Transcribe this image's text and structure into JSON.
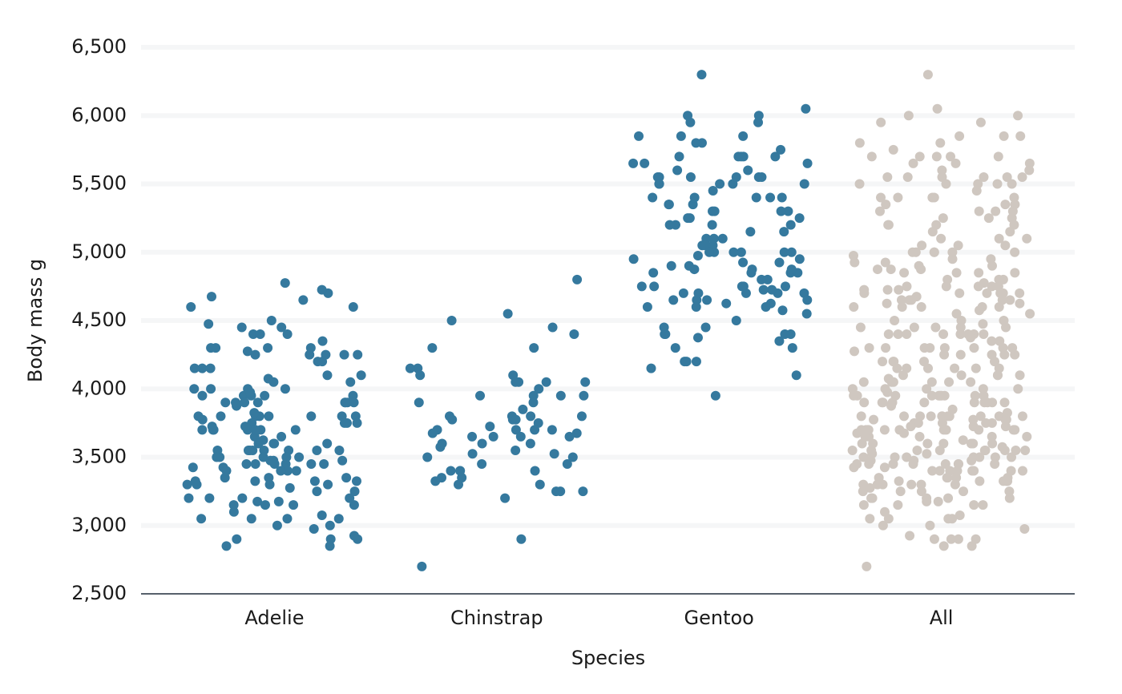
{
  "chart_data": {
    "type": "strip",
    "x_label": "Species",
    "y_label": "Body mass g",
    "categories": [
      "Adelie",
      "Chinstrap",
      "Gentoo",
      "All"
    ],
    "color": "#35799e",
    "combined_color": "#cfc7c0",
    "ylim": [
      2500,
      6500
    ],
    "yticks": [
      {
        "value": 2500,
        "label": "2,500"
      },
      {
        "value": 3000,
        "label": "3,000"
      },
      {
        "value": 3500,
        "label": "3,500"
      },
      {
        "value": 4000,
        "label": "4,000"
      },
      {
        "value": 4500,
        "label": "4,500"
      },
      {
        "value": 5000,
        "label": "5,000"
      },
      {
        "value": 5500,
        "label": "5,500"
      },
      {
        "value": 6000,
        "label": "6,000"
      },
      {
        "value": 6500,
        "label": "6,500"
      }
    ],
    "grid": true,
    "values": [
      [
        3750,
        3800,
        3250,
        3450,
        3650,
        3625,
        4675,
        3475,
        4250,
        3300,
        3700,
        3200,
        3800,
        4400,
        3700,
        3450,
        4500,
        3325,
        4200,
        3400,
        3600,
        3800,
        3950,
        3800,
        3800,
        3550,
        3200,
        3150,
        3950,
        3250,
        3900,
        3300,
        3900,
        3325,
        4150,
        3950,
        3550,
        3300,
        4650,
        3150,
        3900,
        3100,
        4400,
        3000,
        4600,
        3425,
        2975,
        3450,
        4150,
        3500,
        4300,
        3450,
        4050,
        2900,
        3700,
        3550,
        3800,
        2850,
        3750,
        3150,
        4400,
        3600,
        4050,
        2850,
        3950,
        3350,
        4100,
        3050,
        4450,
        3600,
        3900,
        3550,
        4150,
        3700,
        4250,
        3700,
        3900,
        3550,
        4000,
        3200,
        4700,
        3800,
        4200,
        3350,
        3550,
        3800,
        3500,
        3950,
        3600,
        3550,
        4300,
        3400,
        4450,
        3300,
        4300,
        3700,
        4350,
        2900,
        4100,
        3725,
        4725,
        3075,
        4250,
        2925,
        3550,
        3750,
        3900,
        3175,
        4775,
        3825,
        4600,
        3200,
        4275,
        3900,
        4075,
        2900,
        3775,
        3350,
        3325,
        3150,
        3500,
        3450,
        3875,
        3050,
        4000,
        3275,
        4300,
        3050,
        4000,
        3325,
        3500,
        3500,
        4475,
        3425,
        3900,
        3175,
        3975,
        3400,
        4250,
        3400,
        3475,
        3050,
        3725,
        3000,
        3650,
        4250,
        3475,
        3450,
        3750,
        3700,
        4000
      ],
      [
        3500,
        3900,
        3650,
        3525,
        3725,
        3950,
        3250,
        3750,
        4150,
        3700,
        3800,
        3775,
        3700,
        4050,
        3575,
        4050,
        3300,
        3700,
        3450,
        4400,
        3600,
        3400,
        2900,
        3800,
        3300,
        4150,
        3400,
        3800,
        3700,
        4550,
        3200,
        4300,
        3350,
        4100,
        3600,
        3900,
        3850,
        4800,
        2700,
        4500,
        3950,
        3650,
        3550,
        3500,
        3675,
        4450,
        3400,
        4300,
        3250,
        3675,
        3325,
        3950,
        3600,
        4050,
        3350,
        3450,
        3250,
        4050,
        3800,
        3525,
        3950,
        3650,
        3650,
        4000,
        3400,
        3775,
        4100,
        3775
      ],
      [
        4500,
        5700,
        4450,
        5700,
        5400,
        4550,
        4800,
        5200,
        4400,
        5150,
        4650,
        5550,
        4650,
        5850,
        4200,
        5850,
        4150,
        6300,
        4800,
        5350,
        5700,
        5000,
        4400,
        5050,
        5000,
        5100,
        4100,
        5650,
        4600,
        5550,
        5250,
        4700,
        5050,
        6050,
        5150,
        5400,
        4950,
        5250,
        4350,
        5350,
        3950,
        5700,
        4300,
        4750,
        5550,
        4900,
        4200,
        5400,
        5100,
        5300,
        4850,
        5300,
        4400,
        5000,
        4900,
        5050,
        4300,
        5000,
        4450,
        5550,
        4200,
        5300,
        4400,
        5650,
        4700,
        5700,
        4650,
        5800,
        4700,
        5550,
        4750,
        5000,
        5100,
        5200,
        4700,
        5800,
        4600,
        6000,
        4750,
        5950,
        4625,
        5450,
        4725,
        5350,
        4750,
        5600,
        4600,
        5300,
        4875,
        5550,
        4950,
        5400,
        4750,
        5650,
        4850,
        5200,
        4925,
        4875,
        4625,
        5250,
        4850,
        5600,
        4975,
        5500,
        4725,
        5500,
        4700,
        5500,
        4575,
        5500,
        5000,
        5950,
        4650,
        5500,
        4375,
        5850,
        4875,
        6000,
        4925,
        4850,
        5750,
        5200,
        5400
      ]
    ]
  }
}
